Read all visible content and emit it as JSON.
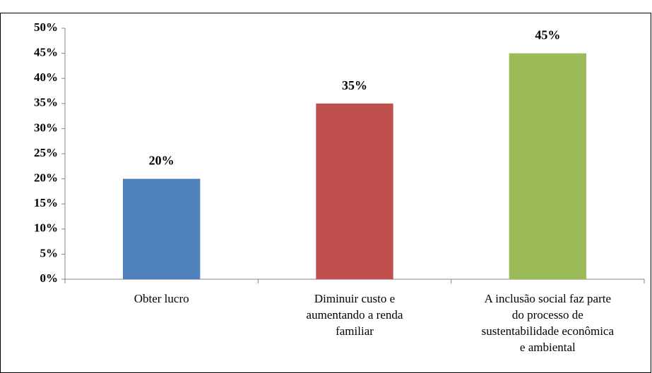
{
  "chart_data": {
    "type": "bar",
    "categories": [
      "Obter lucro",
      "Diminuir custo e\naumentando a renda\nfamiliar",
      "A inclusão social faz parte\ndo processo de\nsustentabilidade econômica\ne ambiental"
    ],
    "values": [
      20,
      35,
      45
    ],
    "value_labels": [
      "20%",
      "35%",
      "45%"
    ],
    "colors": [
      "#4f81bd",
      "#c0504d",
      "#9bbb59"
    ],
    "ylim": [
      0,
      50
    ],
    "yticks": [
      {
        "value": 0,
        "label": "0%"
      },
      {
        "value": 5,
        "label": "5%"
      },
      {
        "value": 10,
        "label": "10%"
      },
      {
        "value": 15,
        "label": "15%"
      },
      {
        "value": 20,
        "label": "20%"
      },
      {
        "value": 25,
        "label": "25%"
      },
      {
        "value": 30,
        "label": "30%"
      },
      {
        "value": 35,
        "label": "35%"
      },
      {
        "value": 40,
        "label": "40%"
      },
      {
        "value": 45,
        "label": "45%"
      },
      {
        "value": 50,
        "label": "50%"
      }
    ],
    "grid": false
  }
}
